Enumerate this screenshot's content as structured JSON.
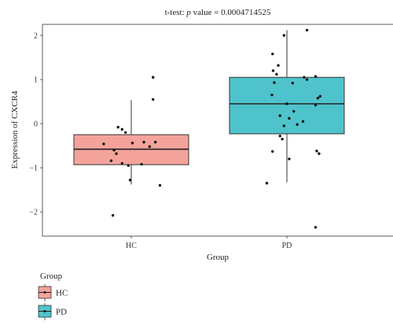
{
  "chart_data": {
    "type": "box",
    "title_prefix": "t-test: ",
    "title_p": "p",
    "title_suffix": " value = 0.0004714525",
    "xlabel": "Group",
    "ylabel": "Expression of CXCR4",
    "categories": [
      "HC",
      "PD"
    ],
    "ylim": [
      -2.55,
      2.25
    ],
    "yticks": [
      -2,
      -1,
      0,
      1,
      2
    ],
    "ytick_labels": [
      "−2",
      "−1",
      "0",
      "1",
      "2"
    ],
    "grid": false,
    "legend": {
      "title": "Group",
      "placement": "bottom-left",
      "entries": [
        {
          "label": "HC",
          "color": "#F4A39B"
        },
        {
          "label": "PD",
          "color": "#4FC3CB"
        }
      ]
    },
    "series": [
      {
        "name": "HC",
        "color": "#F4A39B",
        "box": {
          "whisker_low": -1.38,
          "q1": -0.93,
          "median": -0.58,
          "q3": -0.25,
          "whisker_high": 0.53
        },
        "points": [
          {
            "dx": 0.38,
            "y": 1.05
          },
          {
            "dx": 0.38,
            "y": 0.55
          },
          {
            "dx": -0.23,
            "y": -0.08
          },
          {
            "dx": -0.16,
            "y": -0.13
          },
          {
            "dx": -0.1,
            "y": -0.2
          },
          {
            "dx": -0.48,
            "y": -0.46
          },
          {
            "dx": 0.22,
            "y": -0.42
          },
          {
            "dx": 0.42,
            "y": -0.42
          },
          {
            "dx": 0.02,
            "y": -0.44
          },
          {
            "dx": -0.3,
            "y": -0.6
          },
          {
            "dx": -0.26,
            "y": -0.68
          },
          {
            "dx": 0.32,
            "y": -0.52
          },
          {
            "dx": -0.35,
            "y": -0.84
          },
          {
            "dx": -0.16,
            "y": -0.9
          },
          {
            "dx": 0.18,
            "y": -0.92
          },
          {
            "dx": -0.05,
            "y": -0.95
          },
          {
            "dx": -0.02,
            "y": -1.28
          },
          {
            "dx": 0.5,
            "y": -1.4
          },
          {
            "dx": -0.32,
            "y": -2.08
          }
        ]
      },
      {
        "name": "PD",
        "color": "#4FC3CB",
        "box": {
          "whisker_low": -1.33,
          "q1": -0.23,
          "median": 0.45,
          "q3": 1.05,
          "whisker_high": 2.12
        },
        "points": [
          {
            "dx": 0.35,
            "y": 2.12
          },
          {
            "dx": -0.05,
            "y": 2.0
          },
          {
            "dx": -0.25,
            "y": 1.58
          },
          {
            "dx": -0.15,
            "y": 1.32
          },
          {
            "dx": -0.24,
            "y": 1.2
          },
          {
            "dx": -0.18,
            "y": 1.12
          },
          {
            "dx": 0.3,
            "y": 1.05
          },
          {
            "dx": 0.5,
            "y": 1.07
          },
          {
            "dx": 0.35,
            "y": 1.0
          },
          {
            "dx": 0.1,
            "y": 0.92
          },
          {
            "dx": -0.22,
            "y": 0.93
          },
          {
            "dx": 0.58,
            "y": 0.62
          },
          {
            "dx": 0.54,
            "y": 0.58
          },
          {
            "dx": -0.26,
            "y": 0.65
          },
          {
            "dx": 0.5,
            "y": 0.42
          },
          {
            "dx": 0.0,
            "y": 0.45
          },
          {
            "dx": 0.12,
            "y": 0.28
          },
          {
            "dx": -0.12,
            "y": 0.18
          },
          {
            "dx": 0.04,
            "y": 0.12
          },
          {
            "dx": 0.28,
            "y": 0.05
          },
          {
            "dx": -0.05,
            "y": -0.05
          },
          {
            "dx": 0.18,
            "y": -0.02
          },
          {
            "dx": -0.12,
            "y": -0.28
          },
          {
            "dx": -0.08,
            "y": -0.35
          },
          {
            "dx": -0.25,
            "y": -0.63
          },
          {
            "dx": 0.52,
            "y": -0.62
          },
          {
            "dx": 0.56,
            "y": -0.68
          },
          {
            "dx": 0.04,
            "y": -0.8
          },
          {
            "dx": -0.35,
            "y": -1.35
          },
          {
            "dx": 0.5,
            "y": -2.35
          }
        ]
      }
    ]
  }
}
